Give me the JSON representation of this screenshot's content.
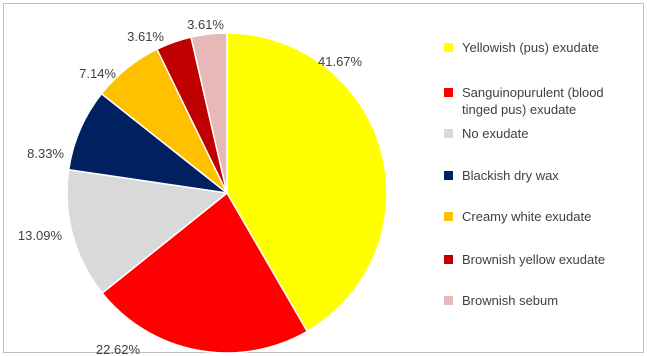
{
  "chart_data": {
    "type": "pie",
    "title": "",
    "start_angle_deg": 0,
    "direction": "clockwise",
    "slices": [
      {
        "label": "Yellowish (pus) exudate",
        "label_lines": [
          "Yellowish (pus) exudate"
        ],
        "value": 41.67,
        "value_label": "41.67%",
        "color": "#FFFF00"
      },
      {
        "label": "Sanguinopurulent (blood tinged pus) exudate",
        "label_lines": [
          "Sanguinopurulent (blood",
          "tinged pus) exudate"
        ],
        "value": 22.62,
        "value_label": "22.62%",
        "color": "#FF0000"
      },
      {
        "label": "No exudate",
        "label_lines": [
          "No exudate"
        ],
        "value": 13.09,
        "value_label": "13.09%",
        "color": "#D9D9D9"
      },
      {
        "label": "Blackish dry wax",
        "label_lines": [
          "Blackish dry wax"
        ],
        "value": 8.33,
        "value_label": "8.33%",
        "color": "#002060"
      },
      {
        "label": "Creamy white exudate",
        "label_lines": [
          "Creamy white exudate"
        ],
        "value": 7.14,
        "value_label": "7.14%",
        "color": "#FFC000"
      },
      {
        "label": "Brownish yellow exudate",
        "label_lines": [
          "Brownish yellow exudate"
        ],
        "value": 3.61,
        "value_label": "3.61%",
        "color": "#C00000"
      },
      {
        "label": "Brownish sebum",
        "label_lines": [
          "Brownish sebum"
        ],
        "value": 3.61,
        "value_label": "3.61%",
        "color": "#E6B9B8"
      }
    ],
    "legend_position": "right"
  }
}
